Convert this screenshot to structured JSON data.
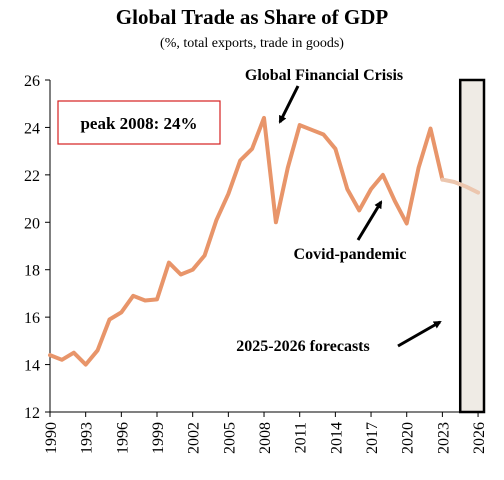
{
  "chart_data": {
    "type": "line",
    "title": "Global Trade as Share of GDP",
    "subtitle": "(%, total exports, trade in goods)",
    "xlabel": "",
    "ylabel": "",
    "ylim": [
      12,
      26
    ],
    "xlim": [
      1990,
      2026.5
    ],
    "y_ticks": [
      "12",
      "14",
      "16",
      "18",
      "20",
      "22",
      "24",
      "26"
    ],
    "x_ticks": [
      "1990",
      "1993",
      "1996",
      "1999",
      "2002",
      "2005",
      "2008",
      "2011",
      "2014",
      "2017",
      "2020",
      "2023",
      "2026"
    ],
    "grid": false,
    "colors": {
      "line": "#E8956A",
      "forecast_line": "#ECC6AE",
      "shade": "#EFEBE5"
    },
    "series": [
      {
        "x": [
          1990,
          1991,
          1992,
          1993,
          1994,
          1995,
          1996,
          1997,
          1998,
          1999,
          2000,
          2001,
          2002,
          2003,
          2004,
          2005,
          2006,
          2007,
          2008,
          2009,
          2010,
          2011,
          2012,
          2013,
          2014,
          2015,
          2016,
          2017,
          2018,
          2019,
          2020,
          2021,
          2022,
          2023
        ],
        "values": [
          14.4,
          14.2,
          14.5,
          14.0,
          14.6,
          15.9,
          16.2,
          16.9,
          16.7,
          16.75,
          18.3,
          17.8,
          18.0,
          18.6,
          20.1,
          21.2,
          22.6,
          23.1,
          24.4,
          20.0,
          22.3,
          24.1,
          23.9,
          23.7,
          23.1,
          21.4,
          20.5,
          21.4,
          22.0,
          20.9,
          19.95,
          22.3,
          23.95,
          21.8
        ]
      },
      {
        "x": [
          2023,
          2024,
          2025,
          2026
        ],
        "values": [
          21.8,
          21.7,
          21.5,
          21.25
        ]
      }
    ],
    "forecast_band": [
      2024.5,
      2026.5
    ],
    "annotations": [
      {
        "text": "Global Financial Crisis"
      },
      {
        "text": "Covid-pandemic"
      },
      {
        "text": "2025-2026 forecasts"
      }
    ],
    "peak_label": "peak 2008: 24%"
  }
}
